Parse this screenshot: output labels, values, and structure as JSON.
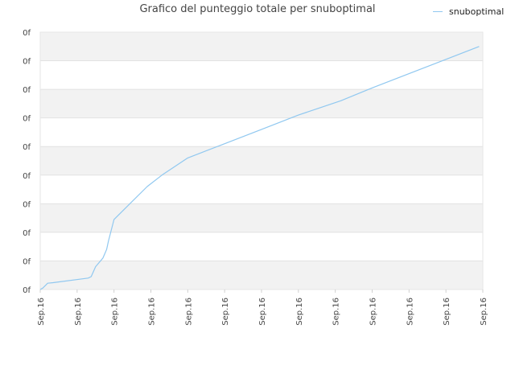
{
  "chart_data": {
    "type": "line",
    "title": "Grafico del punteggio totale per snuboptimal",
    "xlabel": "",
    "ylabel": "",
    "x_tick_labels": [
      "Sep.16",
      "Sep.16",
      "Sep.16",
      "Sep.16",
      "Sep.16",
      "Sep.16",
      "Sep.16",
      "Sep.16",
      "Sep.16",
      "Sep.16",
      "Sep.16",
      "Sep.16",
      "Sep.16"
    ],
    "y_tick_labels": [
      "0f",
      "0f",
      "0f",
      "0f",
      "0f",
      "0f",
      "0f",
      "0f",
      "0f",
      "0f"
    ],
    "xlim": [
      0,
      12
    ],
    "ylim": [
      0,
      9
    ],
    "grid": true,
    "legend_position": "top-right",
    "series": [
      {
        "name": "snuboptimal",
        "color": "#90c8f0",
        "points": [
          [
            0.0,
            0.0
          ],
          [
            0.07,
            0.05
          ],
          [
            0.2,
            0.22
          ],
          [
            0.35,
            0.24
          ],
          [
            1.3,
            0.4
          ],
          [
            1.38,
            0.45
          ],
          [
            1.5,
            0.8
          ],
          [
            1.7,
            1.1
          ],
          [
            1.8,
            1.4
          ],
          [
            1.85,
            1.7
          ],
          [
            2.0,
            2.45
          ],
          [
            2.9,
            3.6
          ],
          [
            3.3,
            4.0
          ],
          [
            4.0,
            4.6
          ],
          [
            5.0,
            5.1
          ],
          [
            6.0,
            5.6
          ],
          [
            7.0,
            6.1
          ],
          [
            8.15,
            6.6
          ],
          [
            9.0,
            7.05
          ],
          [
            10.0,
            7.55
          ],
          [
            11.0,
            8.05
          ],
          [
            11.9,
            8.5
          ]
        ]
      }
    ]
  }
}
